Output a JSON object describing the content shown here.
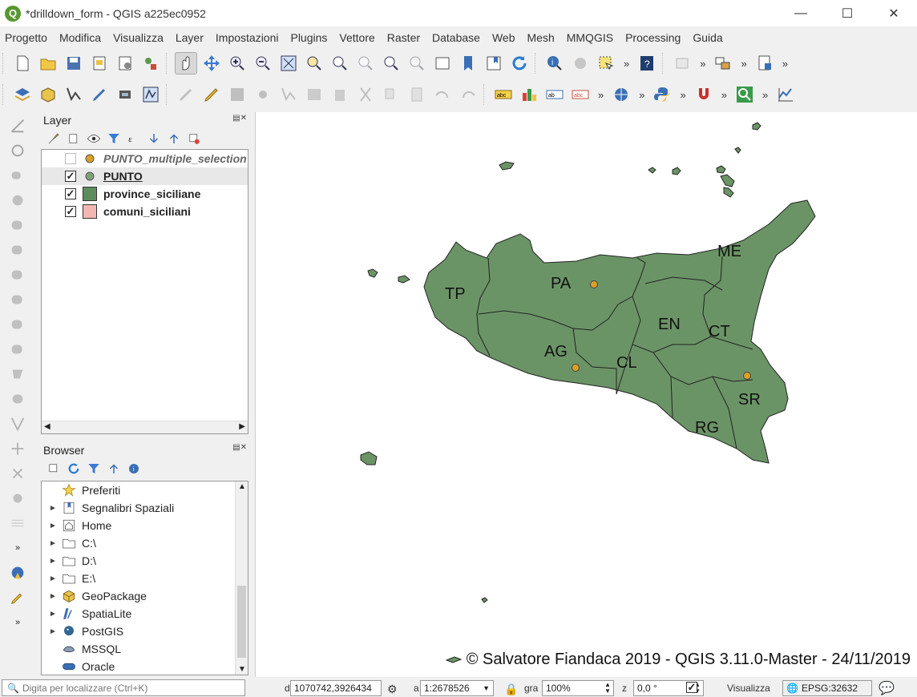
{
  "window": {
    "title": "*drilldown_form - QGIS a225ec0952",
    "logo_letter": "Q"
  },
  "menu": [
    {
      "label": "Progetto"
    },
    {
      "label": "Modifica"
    },
    {
      "label": "Visualizza"
    },
    {
      "label": "Layer"
    },
    {
      "label": "Impostazioni"
    },
    {
      "label": "Plugins"
    },
    {
      "label": "Vettore"
    },
    {
      "label": "Raster"
    },
    {
      "label": "Database"
    },
    {
      "label": "Web"
    },
    {
      "label": "Mesh"
    },
    {
      "label": "MMQGIS"
    },
    {
      "label": "Processing"
    },
    {
      "label": "Guida"
    }
  ],
  "toolbar_overflow": "»",
  "layers_panel": {
    "title": "Layer",
    "layers": [
      {
        "name": "PUNTO_multiple_selection",
        "checked": false,
        "symbol": "point",
        "color": "#d9a027",
        "style": "italic"
      },
      {
        "name": "PUNTO",
        "checked": true,
        "symbol": "point",
        "color": "#7fa07a",
        "style": "underline"
      },
      {
        "name": "province_siciliane",
        "checked": true,
        "symbol": "polygon",
        "color": "#5e8c5f",
        "style": "bold"
      },
      {
        "name": "comuni_siciliani",
        "checked": true,
        "symbol": "polygon",
        "color": "#f2b7b3",
        "style": "bold"
      }
    ]
  },
  "browser_panel": {
    "title": "Browser",
    "items": [
      {
        "label": "Preferiti",
        "icon": "star-icon",
        "expandable": false
      },
      {
        "label": "Segnalibri Spaziali",
        "icon": "bookmark-icon",
        "expandable": true
      },
      {
        "label": "Home",
        "icon": "home-icon",
        "expandable": true
      },
      {
        "label": "C:\\",
        "icon": "folder-icon",
        "expandable": true
      },
      {
        "label": "D:\\",
        "icon": "folder-icon",
        "expandable": true
      },
      {
        "label": "E:\\",
        "icon": "folder-icon",
        "expandable": true
      },
      {
        "label": "GeoPackage",
        "icon": "geopackage-icon",
        "expandable": true
      },
      {
        "label": "SpatiaLite",
        "icon": "spatialite-icon",
        "expandable": true
      },
      {
        "label": "PostGIS",
        "icon": "postgis-icon",
        "expandable": true
      },
      {
        "label": "MSSQL",
        "icon": "mssql-icon",
        "expandable": false
      },
      {
        "label": "Oracle",
        "icon": "oracle-icon",
        "expandable": false
      }
    ]
  },
  "map": {
    "province_labels": [
      "TP",
      "PA",
      "ME",
      "EN",
      "CT",
      "AG",
      "CL",
      "SR",
      "RG"
    ],
    "fill_color": "#6b9466",
    "point_color": "#d9a027",
    "copyright": "© Salvatore Fiandaca 2019 - QGIS 3.11.0-Master - 24/11/2019"
  },
  "statusbar": {
    "locator_placeholder": "Digita per localizzare (Ctrl+K)",
    "coord_label": "d",
    "coordinates": "1070742,3926434",
    "scale_label": "a",
    "scale": "1:2678526",
    "magnifier_label": "gra",
    "magnifier": "100%",
    "rotation_label": "z",
    "rotation": "0,0 °",
    "render_label": "Visualizza",
    "render_checked": true,
    "crs": "EPSG:32632"
  }
}
